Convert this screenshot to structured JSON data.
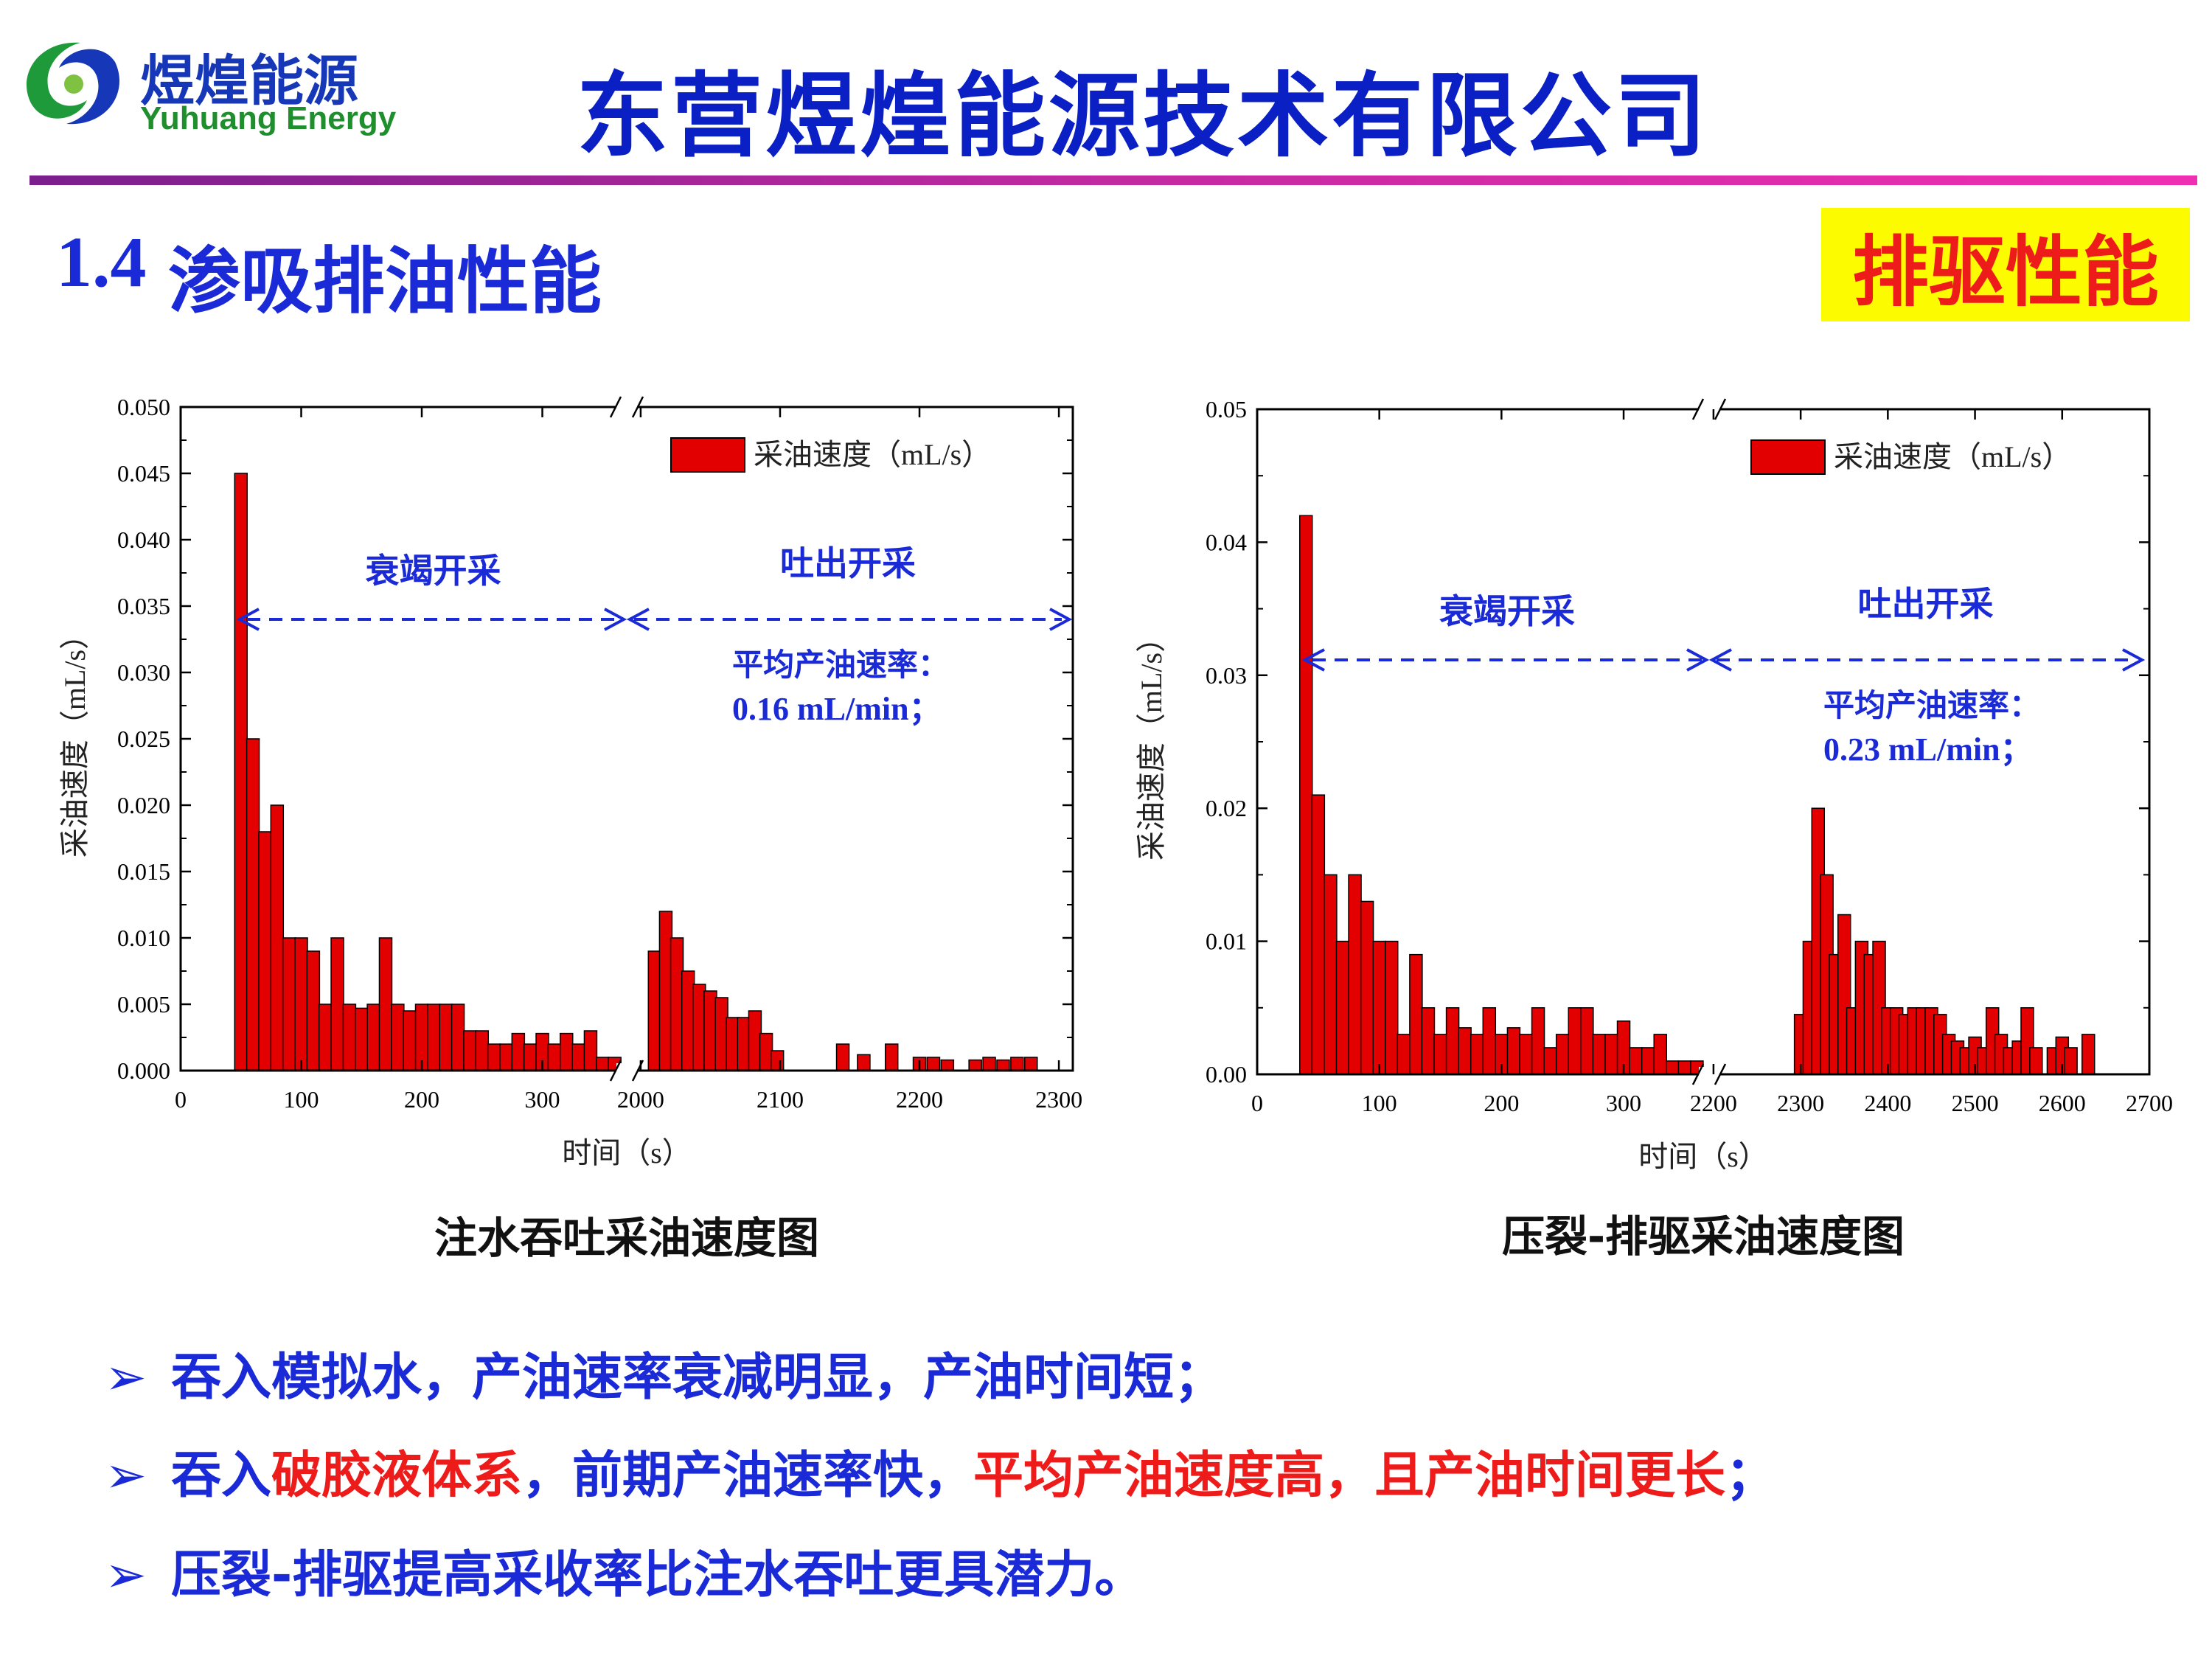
{
  "header": {
    "company_title": "东营煜煌能源技术有限公司",
    "logo_cn": "煜煌能源",
    "logo_en": "Yuhuang Energy",
    "colors": {
      "title": "#0a1fc4",
      "rule_start": "#7a1f8c",
      "rule_end": "#ef2fb2"
    }
  },
  "section": {
    "number": "1.4",
    "title": "渗吸排油性能",
    "tag": "排驱性能",
    "tag_bg": "#fcfb00",
    "tag_color": "#ee1b1b"
  },
  "chart_data": [
    {
      "type": "bar",
      "caption": "注水吞吐采油速度图",
      "xlabel": "时间（s）",
      "ylabel": "采油速度（mL/s）",
      "legend": "采油速度（mL/s）",
      "legend_position": "top-right",
      "bar_color": "#e30000",
      "ylim": [
        0,
        0.05
      ],
      "yticks": [
        "0.000",
        "0.005",
        "0.010",
        "0.015",
        "0.020",
        "0.025",
        "0.030",
        "0.035",
        "0.040",
        "0.045",
        "0.050"
      ],
      "x_segments": [
        {
          "range": [
            0,
            370
          ],
          "ticks": [
            0,
            100,
            200,
            300
          ]
        },
        {
          "range": [
            1990,
            2310
          ],
          "ticks": [
            2000,
            2100,
            2200,
            2300
          ]
        }
      ],
      "phases": [
        "衰竭开采",
        "吐出开采"
      ],
      "annotation_label": "平均产油速率：",
      "annotation_value": "0.16 mL/min；",
      "x": [
        50,
        60,
        70,
        80,
        90,
        100,
        110,
        120,
        130,
        140,
        150,
        160,
        170,
        180,
        190,
        200,
        210,
        220,
        230,
        240,
        250,
        260,
        270,
        280,
        290,
        300,
        310,
        320,
        330,
        340,
        350,
        360,
        2010,
        2018,
        2026,
        2034,
        2042,
        2050,
        2058,
        2066,
        2074,
        2082,
        2090,
        2098,
        2145,
        2160,
        2180,
        2200,
        2210,
        2220,
        2240,
        2250,
        2260,
        2270,
        2280
      ],
      "values": [
        0.045,
        0.025,
        0.018,
        0.02,
        0.01,
        0.01,
        0.009,
        0.005,
        0.01,
        0.005,
        0.0047,
        0.005,
        0.01,
        0.005,
        0.0045,
        0.005,
        0.005,
        0.005,
        0.005,
        0.003,
        0.003,
        0.002,
        0.002,
        0.0028,
        0.002,
        0.0028,
        0.002,
        0.0028,
        0.002,
        0.003,
        0.001,
        0.001,
        0.009,
        0.012,
        0.01,
        0.0075,
        0.0065,
        0.006,
        0.0055,
        0.004,
        0.004,
        0.0045,
        0.0028,
        0.0015,
        0.002,
        0.0012,
        0.002,
        0.001,
        0.001,
        0.0008,
        0.0008,
        0.001,
        0.0008,
        0.001,
        0.001
      ]
    },
    {
      "type": "bar",
      "caption": "压裂-排驱采油速度图",
      "xlabel": "时间（s）",
      "ylabel": "采油速度（mL/s）",
      "legend": "采油速度（mL/s）",
      "legend_position": "top-right",
      "bar_color": "#e30000",
      "ylim": [
        0,
        0.05
      ],
      "yticks": [
        "0.00",
        "0.01",
        "0.02",
        "0.03",
        "0.04",
        "0.05"
      ],
      "x_segments": [
        {
          "range": [
            0,
            370
          ],
          "ticks": [
            0,
            100,
            200,
            300
          ]
        },
        {
          "range": [
            2195,
            2700
          ],
          "ticks": [
            2200,
            2300,
            2400,
            2500,
            2600,
            2700
          ]
        }
      ],
      "phases": [
        "衰竭开采",
        "吐出开采"
      ],
      "annotation_label": "平均产油速率：",
      "annotation_value": "0.23 mL/min；",
      "x": [
        40,
        50,
        60,
        70,
        80,
        90,
        100,
        110,
        120,
        130,
        140,
        150,
        160,
        170,
        180,
        190,
        200,
        210,
        220,
        230,
        240,
        250,
        260,
        270,
        280,
        290,
        300,
        310,
        320,
        330,
        340,
        350,
        360,
        2300,
        2310,
        2320,
        2330,
        2340,
        2350,
        2360,
        2370,
        2380,
        2390,
        2400,
        2410,
        2420,
        2430,
        2440,
        2450,
        2460,
        2470,
        2480,
        2490,
        2500,
        2510,
        2520,
        2530,
        2540,
        2550,
        2560,
        2570,
        2590,
        2600,
        2610,
        2630
      ],
      "values": [
        0.042,
        0.021,
        0.015,
        0.01,
        0.015,
        0.013,
        0.01,
        0.01,
        0.003,
        0.009,
        0.005,
        0.003,
        0.005,
        0.0035,
        0.003,
        0.005,
        0.003,
        0.0035,
        0.003,
        0.005,
        0.002,
        0.003,
        0.005,
        0.005,
        0.003,
        0.003,
        0.004,
        0.002,
        0.002,
        0.003,
        0.001,
        0.001,
        0.001,
        0.0045,
        0.01,
        0.02,
        0.015,
        0.009,
        0.012,
        0.005,
        0.01,
        0.009,
        0.01,
        0.005,
        0.005,
        0.0045,
        0.005,
        0.005,
        0.005,
        0.0045,
        0.003,
        0.0025,
        0.002,
        0.0028,
        0.002,
        0.005,
        0.003,
        0.002,
        0.0025,
        0.005,
        0.002,
        0.002,
        0.0028,
        0.002,
        0.003
      ]
    }
  ],
  "bullets": [
    {
      "parts": [
        {
          "text": "吞入模拟水，产油速率衰减明显，产油时间短；",
          "red": false
        }
      ]
    },
    {
      "parts": [
        {
          "text": "吞入",
          "red": false
        },
        {
          "text": "破胶液体系",
          "red": true
        },
        {
          "text": "，前期产油速率快，",
          "red": false
        },
        {
          "text": "平均产油速度高，且产油时间更长",
          "red": true
        },
        {
          "text": "；",
          "red": false
        }
      ]
    },
    {
      "parts": [
        {
          "text": "压裂-排驱提高采收率比注水吞吐更具潜力。",
          "red": false
        }
      ]
    }
  ],
  "bullet_arrow": "➢"
}
